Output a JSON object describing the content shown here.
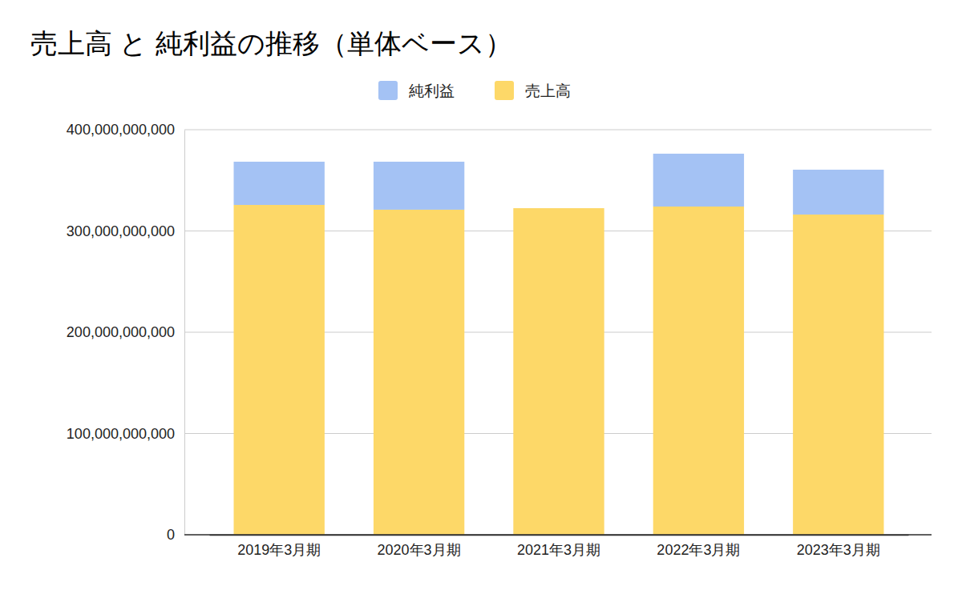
{
  "chart_data": {
    "type": "bar",
    "title": "売上高 と 純利益の推移（単体ベース）",
    "categories": [
      "2019年3月期",
      "2020年3月期",
      "2021年3月期",
      "2022年3月期",
      "2023年3月期"
    ],
    "series": [
      {
        "name": "純利益",
        "color": "#a4c2f4",
        "values": [
          42700000000,
          47400000000,
          0,
          52200000000,
          44300000000
        ]
      },
      {
        "name": "売上高",
        "color": "#fdd868",
        "values": [
          325700000000,
          321000000000,
          322500000000,
          324100000000,
          316200000000
        ]
      }
    ],
    "stacked": true,
    "legend": "top",
    "grid": true,
    "ylim": [
      0,
      400000000000
    ],
    "yticks": [
      0,
      {
        "value": 100000000000,
        "label": "100,000,000,000"
      },
      {
        "value": 200000000000,
        "label": "200,000,000,000"
      },
      {
        "value": 300000000000,
        "label": "300,000,000,000"
      },
      {
        "value": 400000000000,
        "label": "400,000,000,000"
      }
    ]
  }
}
